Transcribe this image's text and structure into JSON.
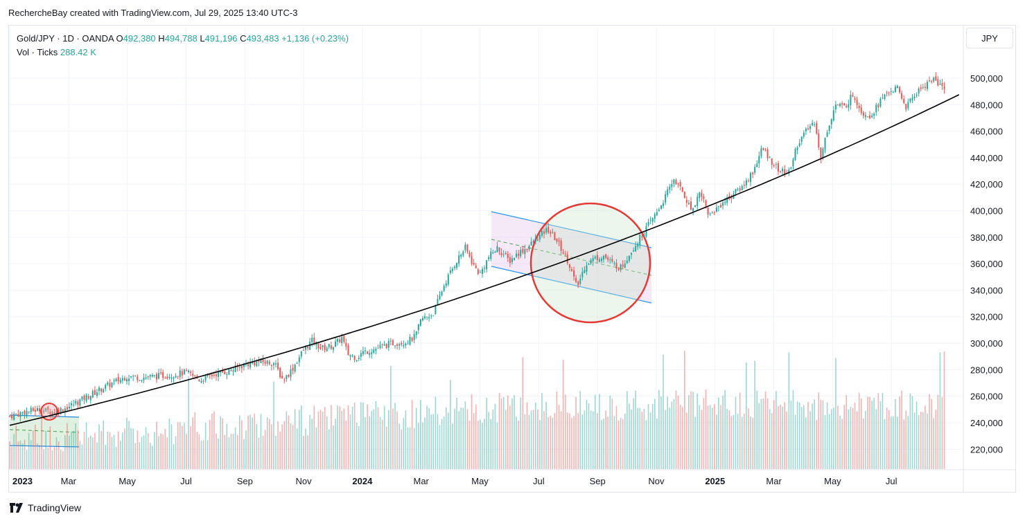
{
  "header": {
    "text": "RechercheBay created with TradingView.com, Jul 29, 2025 13:40 UTC-3"
  },
  "legend": {
    "symbol": "Gold/JPY · 1D · OANDA",
    "open_label": "O",
    "open": "492,380",
    "high_label": "H",
    "high": "494,788",
    "low_label": "L",
    "low": "491,196",
    "close_label": "C",
    "close": "493,483",
    "change": "+1,136 (+0.23%)",
    "vol_label": "Vol · Ticks",
    "vol_value": "288.42 K"
  },
  "currency_button": "JPY",
  "footer": {
    "brand": "TradingView"
  },
  "colors": {
    "up": "#26a69a",
    "down": "#ef5350",
    "trend": "#000000",
    "channel": "#2196f3",
    "circle": "#e53935"
  },
  "chart_data": {
    "type": "line",
    "title": "Gold/JPY · 1D · OANDA",
    "ylabel": "JPY",
    "ylim": [
      205000,
      512000
    ],
    "y_ticks": [
      "220,000",
      "240,000",
      "260,000",
      "280,000",
      "300,000",
      "320,000",
      "340,000",
      "360,000",
      "380,000",
      "400,000",
      "420,000",
      "440,000",
      "460,000",
      "480,000",
      "500,000"
    ],
    "x_ticks": [
      {
        "label": "2023",
        "bold": true,
        "month": 0
      },
      {
        "label": "Mar",
        "bold": false,
        "month": 2
      },
      {
        "label": "May",
        "bold": false,
        "month": 4
      },
      {
        "label": "Jul",
        "bold": false,
        "month": 6
      },
      {
        "label": "Sep",
        "bold": false,
        "month": 8
      },
      {
        "label": "Nov",
        "bold": false,
        "month": 10
      },
      {
        "label": "2024",
        "bold": true,
        "month": 12
      },
      {
        "label": "Mar",
        "bold": false,
        "month": 14
      },
      {
        "label": "May",
        "bold": false,
        "month": 16
      },
      {
        "label": "Jul",
        "bold": false,
        "month": 18
      },
      {
        "label": "Sep",
        "bold": false,
        "month": 20
      },
      {
        "label": "Nov",
        "bold": false,
        "month": 22
      },
      {
        "label": "2025",
        "bold": true,
        "month": 24
      },
      {
        "label": "Mar",
        "bold": false,
        "month": 26
      },
      {
        "label": "May",
        "bold": false,
        "month": 28
      },
      {
        "label": "Jul",
        "bold": false,
        "month": 30
      }
    ],
    "series": [
      {
        "values": [
          [
            0.0,
            245000
          ],
          [
            0.5,
            248000
          ],
          [
            1.0,
            250000
          ],
          [
            1.5,
            248000
          ],
          [
            2.0,
            252000
          ],
          [
            2.5,
            258000
          ],
          [
            3.0,
            264000
          ],
          [
            3.5,
            270000
          ],
          [
            4.0,
            275000
          ],
          [
            4.5,
            274000
          ],
          [
            5.0,
            275000
          ],
          [
            5.5,
            276000
          ],
          [
            6.0,
            278000
          ],
          [
            6.5,
            272000
          ],
          [
            7.0,
            277000
          ],
          [
            7.5,
            279000
          ],
          [
            8.0,
            284000
          ],
          [
            8.5,
            286000
          ],
          [
            9.0,
            285000
          ],
          [
            9.3,
            272000
          ],
          [
            9.6,
            280000
          ],
          [
            10.0,
            295000
          ],
          [
            10.3,
            302000
          ],
          [
            10.6,
            296000
          ],
          [
            11.0,
            298000
          ],
          [
            11.3,
            304000
          ],
          [
            11.5,
            292000
          ],
          [
            11.8,
            289000
          ],
          [
            12.0,
            293000
          ],
          [
            12.5,
            296000
          ],
          [
            13.0,
            300000
          ],
          [
            13.5,
            301000
          ],
          [
            13.8,
            305000
          ],
          [
            14.0,
            318000
          ],
          [
            14.4,
            322000
          ],
          [
            14.8,
            345000
          ],
          [
            15.2,
            362000
          ],
          [
            15.5,
            372000
          ],
          [
            15.8,
            358000
          ],
          [
            16.0,
            352000
          ],
          [
            16.3,
            365000
          ],
          [
            16.6,
            372000
          ],
          [
            17.0,
            362000
          ],
          [
            17.3,
            368000
          ],
          [
            17.6,
            372000
          ],
          [
            18.0,
            380000
          ],
          [
            18.3,
            386000
          ],
          [
            18.6,
            378000
          ],
          [
            19.0,
            362000
          ],
          [
            19.3,
            342000
          ],
          [
            19.6,
            360000
          ],
          [
            19.9,
            364000
          ],
          [
            20.2,
            366000
          ],
          [
            20.5,
            360000
          ],
          [
            20.8,
            357000
          ],
          [
            21.1,
            368000
          ],
          [
            21.4,
            378000
          ],
          [
            21.7,
            388000
          ],
          [
            22.0,
            398000
          ],
          [
            22.3,
            410000
          ],
          [
            22.6,
            424000
          ],
          [
            22.9,
            414000
          ],
          [
            23.2,
            400000
          ],
          [
            23.5,
            415000
          ],
          [
            23.8,
            396000
          ],
          [
            24.2,
            405000
          ],
          [
            24.6,
            412000
          ],
          [
            25.0,
            420000
          ],
          [
            25.3,
            430000
          ],
          [
            25.6,
            447000
          ],
          [
            25.9,
            438000
          ],
          [
            26.2,
            430000
          ],
          [
            26.5,
            428000
          ],
          [
            26.8,
            450000
          ],
          [
            27.1,
            460000
          ],
          [
            27.4,
            468000
          ],
          [
            27.6,
            438000
          ],
          [
            27.8,
            460000
          ],
          [
            28.1,
            480000
          ],
          [
            28.4,
            478000
          ],
          [
            28.7,
            488000
          ],
          [
            29.0,
            474000
          ],
          [
            29.3,
            472000
          ],
          [
            29.6,
            482000
          ],
          [
            29.9,
            490000
          ],
          [
            30.2,
            492000
          ],
          [
            30.5,
            478000
          ],
          [
            30.8,
            488000
          ],
          [
            31.1,
            494000
          ],
          [
            31.4,
            500000
          ],
          [
            31.7,
            493483
          ]
        ]
      }
    ]
  }
}
